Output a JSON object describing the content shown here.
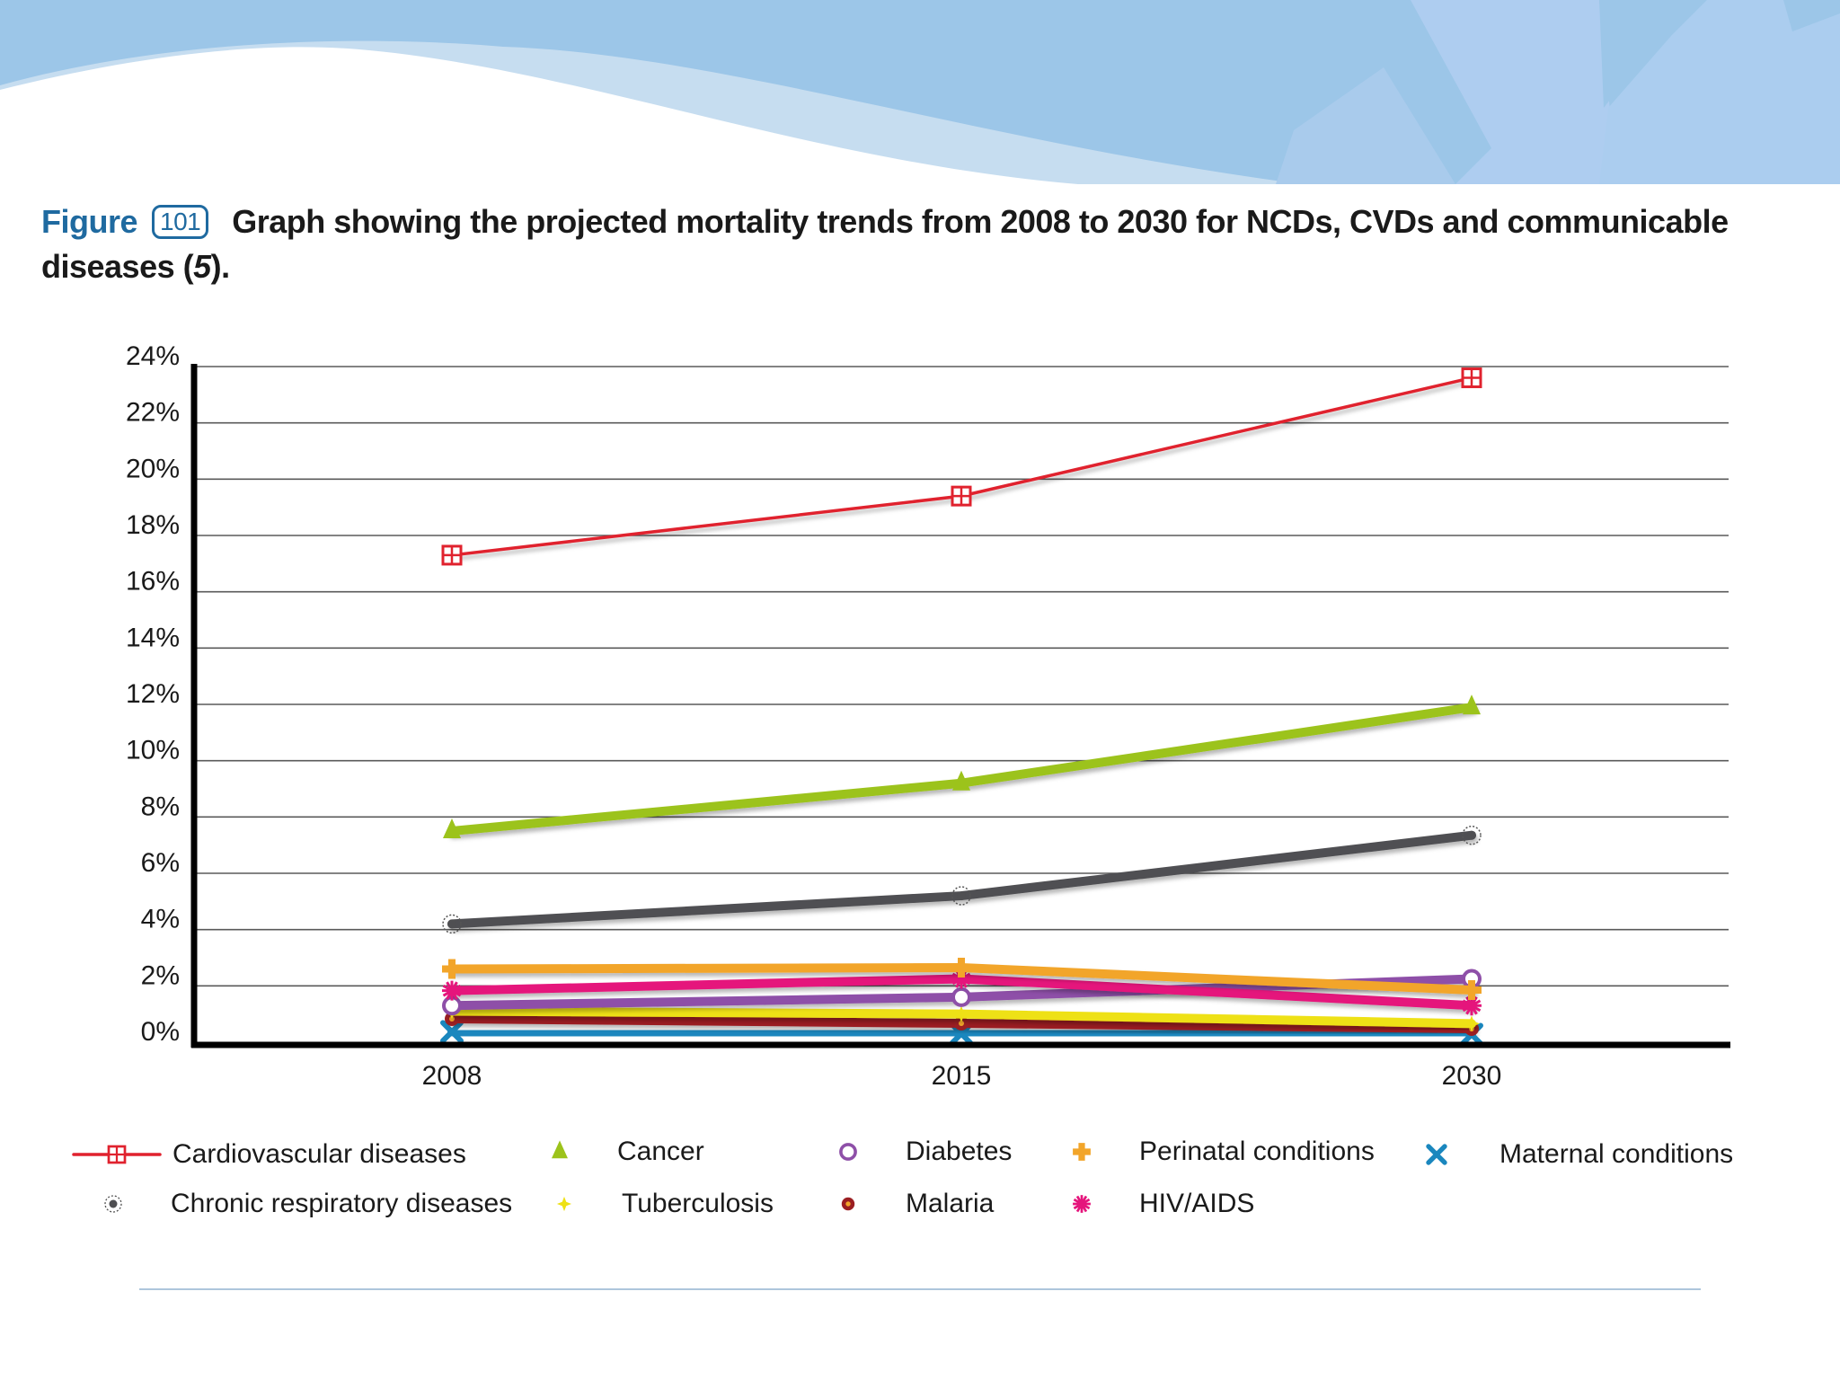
{
  "figure": {
    "label": "Figure",
    "number": "101",
    "caption_text": "Graph showing the projected mortality trends from 2008 to 2030 for NCDs, CVDs and communicable",
    "caption_line2_prefix": "diseases (",
    "caption_ref": "5",
    "caption_line2_suffix": ")."
  },
  "colors": {
    "banner_light": "#c6ddf0",
    "banner_mid": "#a9cbec",
    "banner_dark": "#9cc6e8",
    "figure_accent": "#1f6aa0",
    "divider": "#aec6dc"
  },
  "chart_data": {
    "type": "line",
    "title": "Graph showing the projected mortality trends from 2008 to 2030 for NCDs, CVDs and communicable diseases (5).",
    "xlabel": "",
    "ylabel": "",
    "x": [
      "2008",
      "2015",
      "2030"
    ],
    "ylim": [
      0,
      24
    ],
    "y_ticks": [
      "0%",
      "2%",
      "4%",
      "6%",
      "8%",
      "10%",
      "12%",
      "14%",
      "16%",
      "18%",
      "20%",
      "22%",
      "24%"
    ],
    "y_tick_values": [
      0,
      2,
      4,
      6,
      8,
      10,
      12,
      14,
      16,
      18,
      20,
      22,
      24
    ],
    "grid": true,
    "legend_position": "bottom",
    "series": [
      {
        "name": "Cardiovascular diseases",
        "color": "#e0222e",
        "marker": "square-grid",
        "values": [
          17.3,
          19.4,
          23.6
        ]
      },
      {
        "name": "Cancer",
        "color": "#9cc31b",
        "marker": "triangle-cross",
        "values": [
          7.5,
          9.2,
          11.9
        ]
      },
      {
        "name": "Diabetes",
        "color": "#8e4fa8",
        "marker": "circle",
        "values": [
          1.3,
          1.6,
          2.25
        ]
      },
      {
        "name": "Perinatal conditions",
        "color": "#f2a52a",
        "marker": "plus",
        "values": [
          2.6,
          2.65,
          1.85
        ]
      },
      {
        "name": "Maternal conditions",
        "color": "#1a87be",
        "marker": "x-cross",
        "values": [
          0.37,
          0.3,
          0.27
        ]
      },
      {
        "name": "Chronic respiratory diseases",
        "color": "#4f4f52",
        "marker": "dotted-circle",
        "values": [
          4.2,
          5.2,
          7.35
        ]
      },
      {
        "name": "Tuberculosis",
        "color": "#eee116",
        "marker": "star",
        "values": [
          1.1,
          1.0,
          0.66
        ]
      },
      {
        "name": "Malaria",
        "color": "#9b1f22",
        "marker": "circle-dot",
        "values": [
          0.83,
          0.67,
          0.48
        ]
      },
      {
        "name": "HIV/AIDS",
        "color": "#e5157c",
        "marker": "asterisk",
        "values": [
          1.83,
          2.25,
          1.3
        ]
      }
    ]
  }
}
